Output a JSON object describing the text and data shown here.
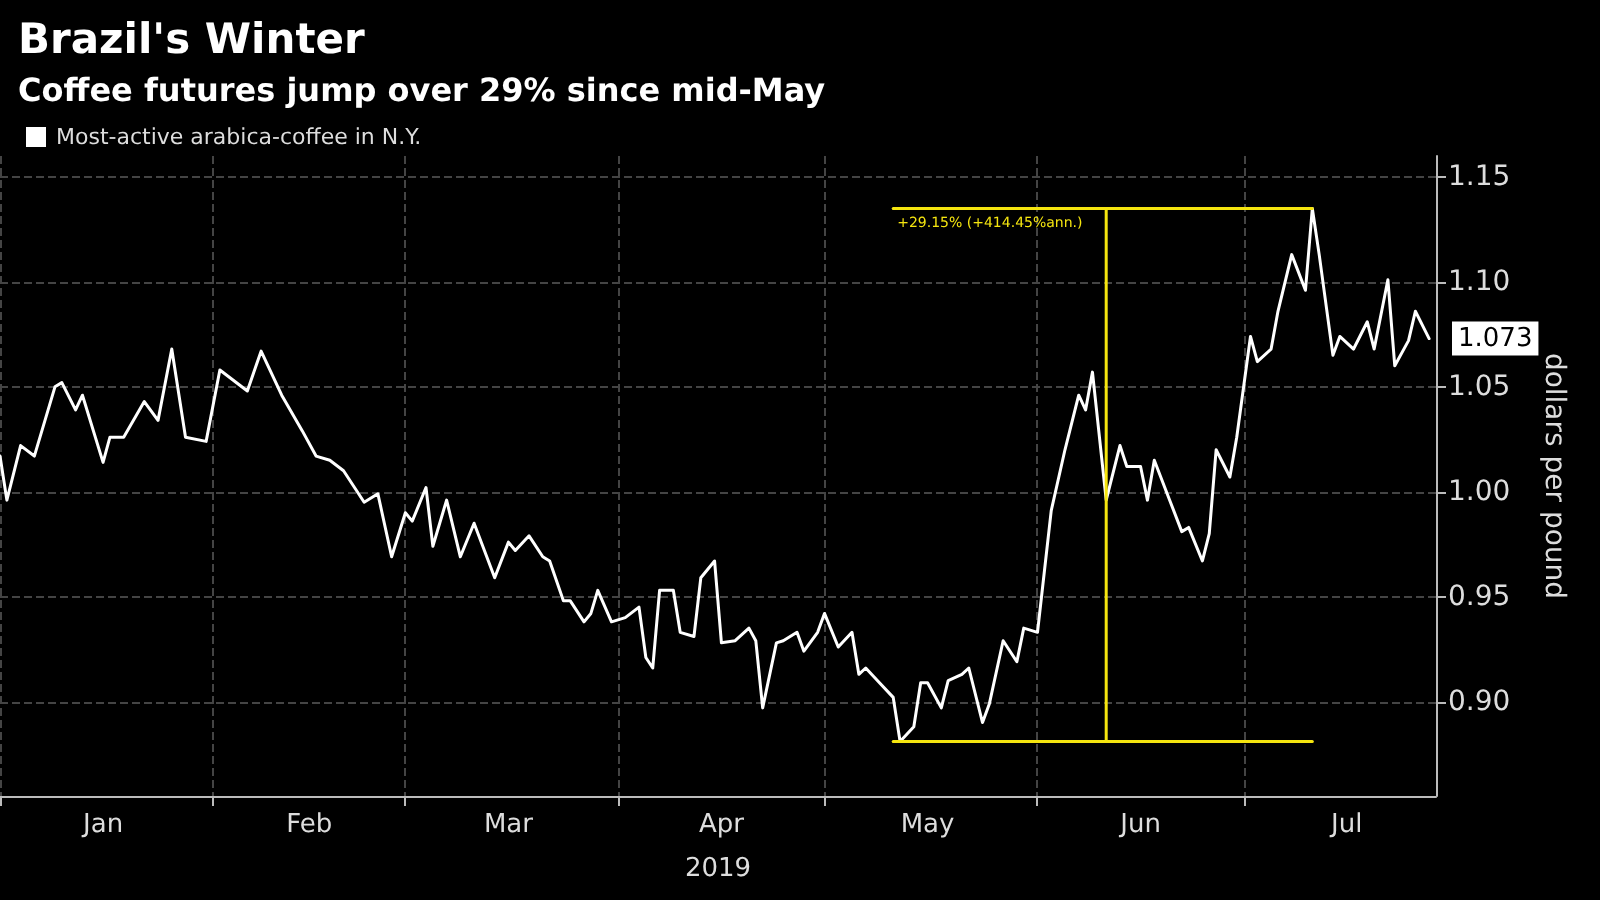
{
  "chart_data": {
    "type": "line",
    "title": "Brazil's Winter",
    "subtitle": "Coffee futures jump over 29% since mid-May",
    "xlabel": "2019",
    "ylabel": "dollars per pound",
    "legend": "top left",
    "grid": true,
    "marker": "none",
    "line_style": "solid",
    "xlim": [
      "2019-01-01",
      "2019-07-29"
    ],
    "xticks": [
      {
        "value": "2019-01-01",
        "label": null
      },
      {
        "value": "2019-02-01",
        "label": null
      },
      {
        "value": "2019-03-01",
        "label": null
      },
      {
        "value": "2019-04-01",
        "label": null
      },
      {
        "value": "2019-05-01",
        "label": null
      },
      {
        "value": "2019-06-01",
        "label": null
      },
      {
        "value": "2019-07-01",
        "label": null
      },
      {
        "value": "2019-01-16",
        "label": "Jan"
      },
      {
        "value": "2019-02-15",
        "label": "Feb"
      },
      {
        "value": "2019-03-16",
        "label": "Mar"
      },
      {
        "value": "2019-04-16",
        "label": "Apr"
      },
      {
        "value": "2019-05-16",
        "label": "May"
      },
      {
        "value": "2019-06-16",
        "label": "Jun"
      },
      {
        "value": "2019-07-16",
        "label": "Jul"
      }
    ],
    "ylim": [
      0.855,
      1.16
    ],
    "yticks": [
      {
        "value": 0.9,
        "label": "0.90"
      },
      {
        "value": 0.95,
        "label": "0.95"
      },
      {
        "value": 1.0,
        "label": "1.00"
      },
      {
        "value": 1.05,
        "label": "1.05"
      },
      {
        "value": 1.1,
        "label": "1.10"
      },
      {
        "value": 1.15,
        "label": "1.15"
      }
    ],
    "series": [
      {
        "name": "Most-active arabica-coffee in N.Y.",
        "color": "#ffffff",
        "x": [
          "2019-01-01",
          "2019-01-02",
          "2019-01-04",
          "2019-01-06",
          "2019-01-09",
          "2019-01-10",
          "2019-01-12",
          "2019-01-13",
          "2019-01-16",
          "2019-01-17",
          "2019-01-19",
          "2019-01-22",
          "2019-01-24",
          "2019-01-26",
          "2019-01-28",
          "2019-01-31",
          "2019-02-02",
          "2019-02-06",
          "2019-02-08",
          "2019-02-11",
          "2019-02-14",
          "2019-02-16",
          "2019-02-18",
          "2019-02-20",
          "2019-02-23",
          "2019-02-25",
          "2019-02-27",
          "2019-03-01",
          "2019-03-02",
          "2019-03-04",
          "2019-03-05",
          "2019-03-07",
          "2019-03-09",
          "2019-03-11",
          "2019-03-14",
          "2019-03-16",
          "2019-03-17",
          "2019-03-19",
          "2019-03-21",
          "2019-03-22",
          "2019-03-24",
          "2019-03-25",
          "2019-03-27",
          "2019-03-28",
          "2019-03-29",
          "2019-03-31",
          "2019-04-02",
          "2019-04-04",
          "2019-04-05",
          "2019-04-06",
          "2019-04-07",
          "2019-04-09",
          "2019-04-10",
          "2019-04-12",
          "2019-04-13",
          "2019-04-15",
          "2019-04-16",
          "2019-04-18",
          "2019-04-20",
          "2019-04-21",
          "2019-04-22",
          "2019-04-24",
          "2019-04-25",
          "2019-04-27",
          "2019-04-28",
          "2019-04-30",
          "2019-05-01",
          "2019-05-03",
          "2019-05-05",
          "2019-05-06",
          "2019-05-07",
          "2019-05-09",
          "2019-05-11",
          "2019-05-12",
          "2019-05-14",
          "2019-05-15",
          "2019-05-16",
          "2019-05-18",
          "2019-05-19",
          "2019-05-21",
          "2019-05-22",
          "2019-05-24",
          "2019-05-25",
          "2019-05-27",
          "2019-05-29",
          "2019-05-30",
          "2019-06-01",
          "2019-06-02",
          "2019-06-03",
          "2019-06-05",
          "2019-06-07",
          "2019-06-08",
          "2019-06-09",
          "2019-06-11",
          "2019-06-13",
          "2019-06-14",
          "2019-06-16",
          "2019-06-17",
          "2019-06-18",
          "2019-06-20",
          "2019-06-22",
          "2019-06-23",
          "2019-06-25",
          "2019-06-26",
          "2019-06-27",
          "2019-06-29",
          "2019-06-30",
          "2019-07-02",
          "2019-07-03",
          "2019-07-05",
          "2019-07-06",
          "2019-07-08",
          "2019-07-10",
          "2019-07-11",
          "2019-07-12",
          "2019-07-14",
          "2019-07-15",
          "2019-07-17",
          "2019-07-19",
          "2019-07-20",
          "2019-07-22",
          "2019-07-23",
          "2019-07-25",
          "2019-07-26",
          "2019-07-28"
        ],
        "values": [
          1.017,
          0.996,
          1.022,
          1.017,
          1.05,
          1.052,
          1.039,
          1.046,
          1.014,
          1.026,
          1.026,
          1.043,
          1.034,
          1.068,
          1.026,
          1.024,
          1.058,
          1.048,
          1.067,
          1.046,
          1.029,
          1.017,
          1.015,
          1.01,
          0.995,
          0.999,
          0.969,
          0.99,
          0.986,
          1.002,
          0.974,
          0.996,
          0.969,
          0.985,
          0.959,
          0.976,
          0.972,
          0.979,
          0.969,
          0.967,
          0.948,
          0.948,
          0.938,
          0.942,
          0.953,
          0.938,
          0.94,
          0.945,
          0.921,
          0.916,
          0.953,
          0.953,
          0.933,
          0.931,
          0.959,
          0.967,
          0.928,
          0.929,
          0.935,
          0.929,
          0.897,
          0.928,
          0.929,
          0.933,
          0.924,
          0.933,
          0.942,
          0.926,
          0.933,
          0.913,
          0.916,
          0.909,
          0.902,
          0.881,
          0.888,
          0.909,
          0.909,
          0.897,
          0.91,
          0.913,
          0.916,
          0.89,
          0.899,
          0.929,
          0.919,
          0.935,
          0.933,
          0.962,
          0.991,
          1.02,
          1.046,
          1.039,
          1.057,
          0.996,
          1.022,
          1.012,
          1.012,
          0.996,
          1.015,
          0.998,
          0.981,
          0.983,
          0.967,
          0.98,
          1.02,
          1.007,
          1.026,
          1.074,
          1.062,
          1.068,
          1.086,
          1.113,
          1.096,
          1.135,
          1.113,
          1.065,
          1.074,
          1.068,
          1.081,
          1.068,
          1.101,
          1.06,
          1.072,
          1.086,
          1.073
        ]
      },
      {
        "color": "#f5e50f",
        "x": [
          "2019-05-11",
          "2019-07-11"
        ],
        "values": [
          1.135,
          1.135
        ]
      },
      {
        "color": "#f5e50f",
        "x": [
          "2019-05-11",
          "2019-07-11"
        ],
        "values": [
          0.881,
          0.881
        ]
      },
      {
        "color": "#f5e50f",
        "x": [
          "2019-06-11",
          "2019-06-11"
        ],
        "values": [
          0.881,
          1.135
        ]
      }
    ],
    "annotations": [
      {
        "text": "+29.15% (+414.45%ann.)",
        "x": "2019-05-11",
        "y": 1.135
      },
      {
        "text": "1.073",
        "x": "2019-07-28",
        "y": 1.073
      }
    ]
  }
}
